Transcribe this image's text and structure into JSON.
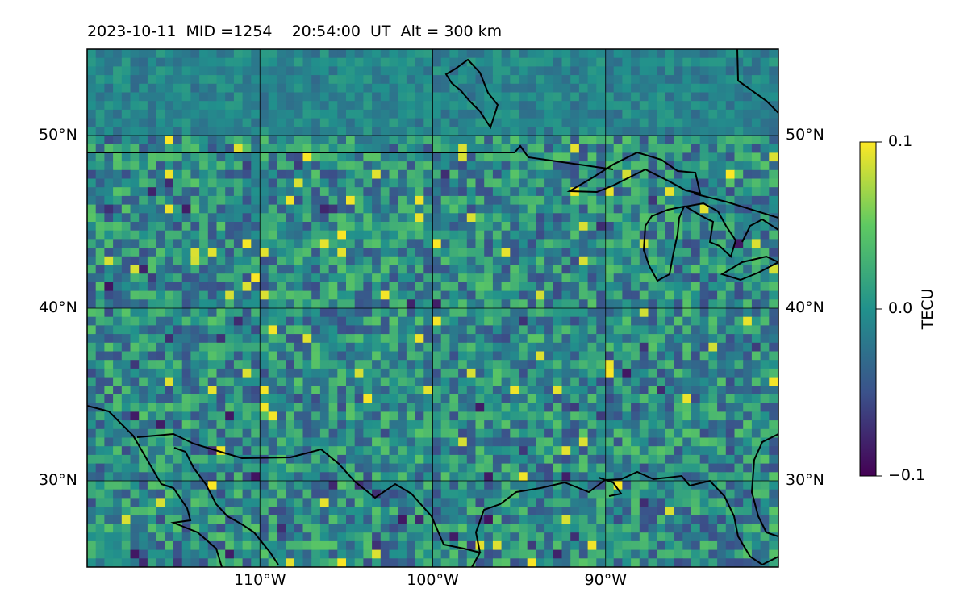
{
  "figure": {
    "title": "2023-10-11  MID =1254    20:54:00  UT  Alt = 300 km"
  },
  "map": {
    "projection": "plate-carree",
    "lon_range": [
      -120,
      -80
    ],
    "lat_range": [
      25,
      55
    ],
    "lat_gridlines": [
      {
        "value": 30,
        "label": "30°N"
      },
      {
        "value": 40,
        "label": "40°N"
      },
      {
        "value": 50,
        "label": "50°N"
      }
    ],
    "lon_gridlines": [
      {
        "value": -110,
        "label": "110°W"
      },
      {
        "value": -100,
        "label": "100°W"
      },
      {
        "value": -90,
        "label": "90°W"
      }
    ],
    "coastline_color": "#000000",
    "gridline_color": "#000000",
    "field": "differential TEC, pixelated noise-like pattern",
    "colormap": "viridis"
  },
  "colorbar": {
    "label": "TECU",
    "vmin": -0.1,
    "vmax": 0.1,
    "ticks": [
      {
        "value": 0.1,
        "label": "0.1"
      },
      {
        "value": 0.0,
        "label": "0.0"
      },
      {
        "value": -0.1,
        "label": "−0.1"
      }
    ],
    "colors": [
      "#440154",
      "#3b528b",
      "#21918c",
      "#5ec962",
      "#fde725"
    ]
  }
}
